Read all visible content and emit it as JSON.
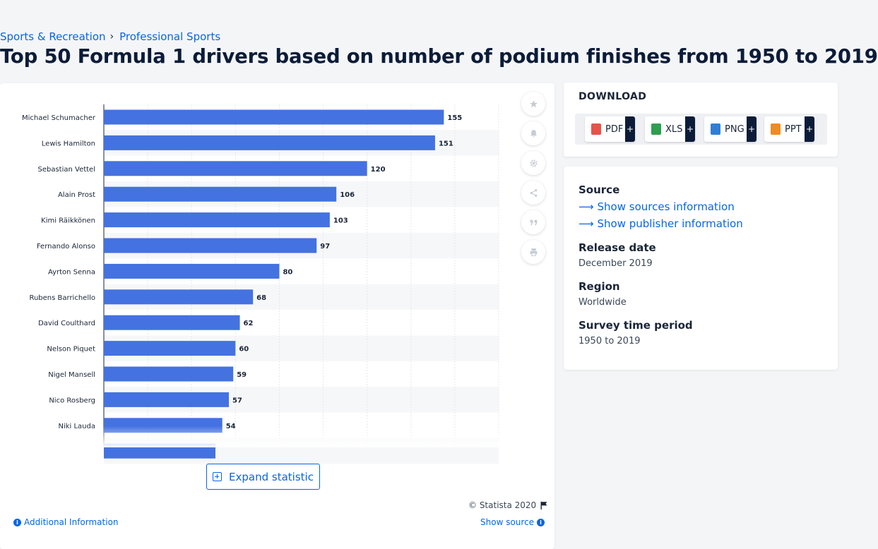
{
  "breadcrumb": {
    "item1": "Sports & Recreation",
    "separator": "›",
    "item2": "Professional Sports"
  },
  "title": "Top 50 Formula 1 drivers based on number of podium finishes from 1950 to 2019",
  "chart_data": {
    "type": "bar",
    "orientation": "horizontal",
    "categories": [
      "Michael Schumacher",
      "Lewis Hamilton",
      "Sebastian Vettel",
      "Alain Prost",
      "Kimi Räikkönen",
      "Fernando Alonso",
      "Ayrton Senna",
      "Rubens Barrichello",
      "David Coulthard",
      "Nelson Piquet",
      "Nigel Mansell",
      "Nico Rosberg",
      "Niki Lauda"
    ],
    "values": [
      155,
      151,
      120,
      106,
      103,
      97,
      80,
      68,
      62,
      60,
      59,
      57,
      54
    ],
    "bar_color": "#4472e0",
    "xlim": [
      0,
      180
    ],
    "grid": true,
    "data_labels": true
  },
  "tools": [
    "star-icon",
    "bell-icon",
    "gear-icon",
    "share-icon",
    "quote-icon",
    "print-icon"
  ],
  "expand_label": "Expand statistic",
  "copyright": "© Statista 2020",
  "additional_info": "Additional Information",
  "show_source": "Show source",
  "download": {
    "title": "DOWNLOAD",
    "buttons": [
      {
        "label": "PDF",
        "color": "#e5534b"
      },
      {
        "label": "XLS",
        "color": "#2e9e4f"
      },
      {
        "label": "PNG",
        "color": "#2f7fd6"
      },
      {
        "label": "PPT",
        "color": "#f08a24"
      }
    ],
    "plus": "+"
  },
  "info": {
    "source_label": "Source",
    "sources_link": "Show sources information",
    "publisher_link": "Show publisher information",
    "release_label": "Release date",
    "release_value": "December 2019",
    "region_label": "Region",
    "region_value": "Worldwide",
    "survey_label": "Survey time period",
    "survey_value": "1950 to 2019"
  }
}
